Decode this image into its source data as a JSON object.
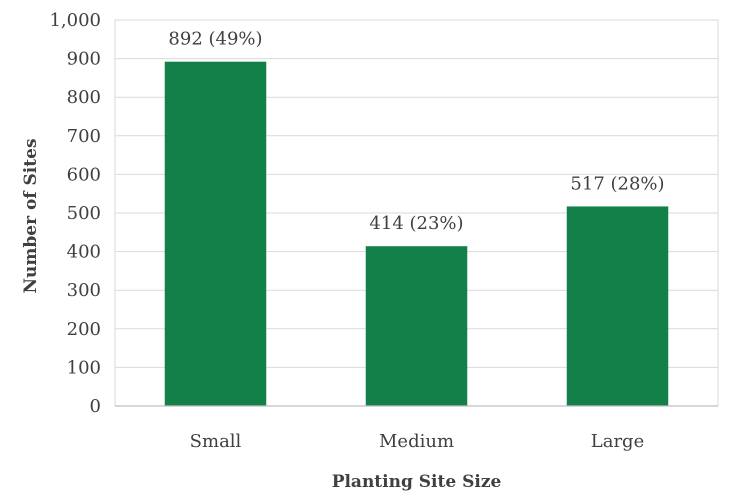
{
  "chart_data": {
    "type": "bar",
    "title": "",
    "xlabel": "Planting Site Size",
    "ylabel": "Number of Sites",
    "categories": [
      "Small",
      "Medium",
      "Large"
    ],
    "values": [
      892,
      414,
      517
    ],
    "data_labels": [
      "892 (49%)",
      "414 (23%)",
      "517 (28%)"
    ],
    "ylim": [
      0,
      1000
    ],
    "yticks": [
      0,
      100,
      200,
      300,
      400,
      500,
      600,
      700,
      800,
      900,
      1000
    ],
    "ytick_labels": [
      "0",
      "100",
      "200",
      "300",
      "400",
      "500",
      "600",
      "700",
      "800",
      "900",
      "1,000"
    ],
    "grid": true,
    "legend": "none",
    "colors": {
      "bar": "#138049",
      "grid": "#d9d9d9",
      "axis": "#bfbfbf",
      "text": "#404040"
    }
  }
}
